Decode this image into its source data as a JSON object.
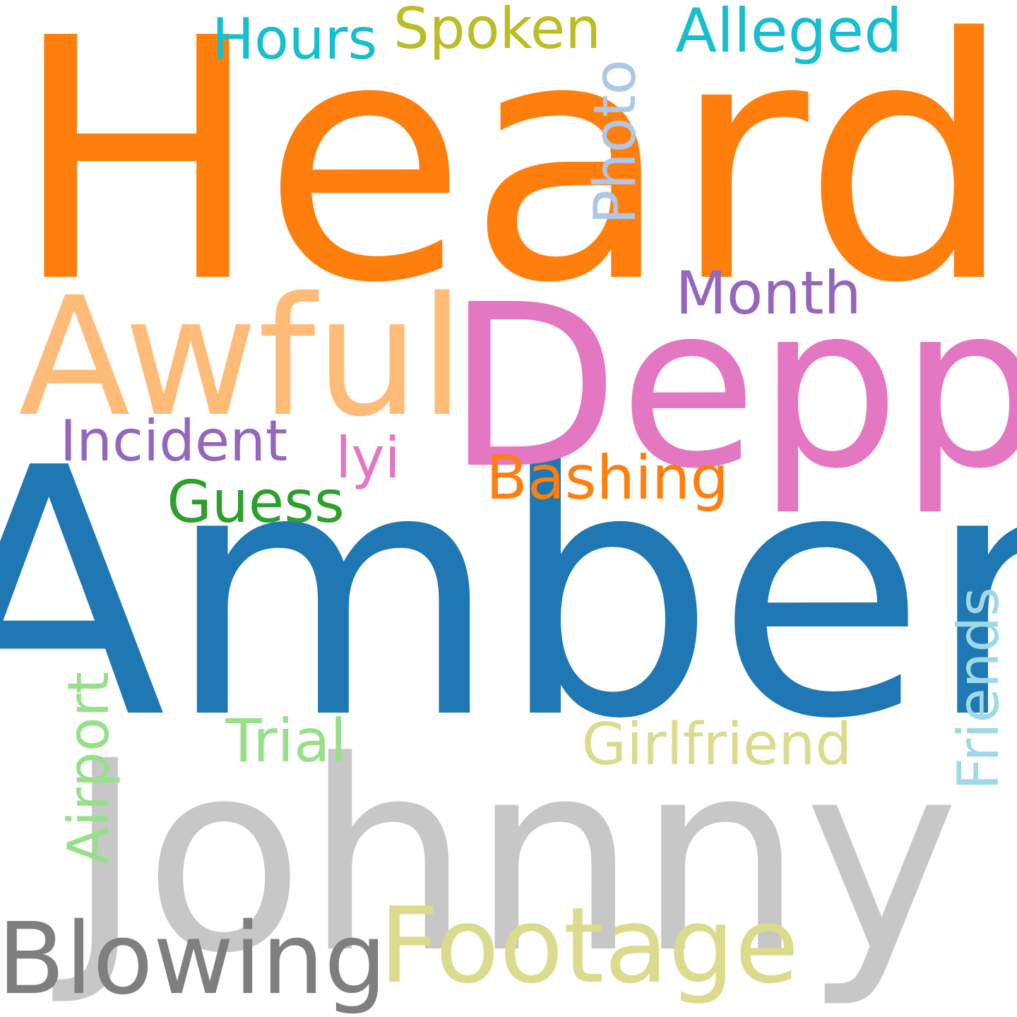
{
  "words": {
    "heard": {
      "text": "Heard",
      "color": "#ff7f0e"
    },
    "amber": {
      "text": "Amber",
      "color": "#1f77b4"
    },
    "johnny": {
      "text": "Johnny",
      "color": "#c7c7c7"
    },
    "depp": {
      "text": "Depp",
      "color": "#e377c2"
    },
    "awful": {
      "text": "Awful",
      "color": "#ffbb78"
    },
    "footage": {
      "text": "Footage",
      "color": "#dbdb8d"
    },
    "blowing": {
      "text": "Blowing",
      "color": "#7f7f7f"
    },
    "alleged": {
      "text": "Alleged",
      "color": "#17becf"
    },
    "hours": {
      "text": "Hours",
      "color": "#17becf"
    },
    "spoken": {
      "text": "Spoken",
      "color": "#bcbd22"
    },
    "photo": {
      "text": "Photo",
      "color": "#aec7e8"
    },
    "month": {
      "text": "Month",
      "color": "#9467bd"
    },
    "incident": {
      "text": "Incident",
      "color": "#9467bd"
    },
    "lyi": {
      "text": "lyi",
      "color": "#e377c2"
    },
    "bashing": {
      "text": "Bashing",
      "color": "#ff7f0e"
    },
    "guess": {
      "text": "Guess",
      "color": "#2ca02c"
    },
    "trial": {
      "text": "Trial",
      "color": "#98df8a"
    },
    "girlfriend": {
      "text": "Girlfriend",
      "color": "#dbdb8d"
    },
    "airport": {
      "text": "Airport",
      "color": "#98df8a"
    },
    "friends": {
      "text": "Friends",
      "color": "#9edae5"
    }
  }
}
